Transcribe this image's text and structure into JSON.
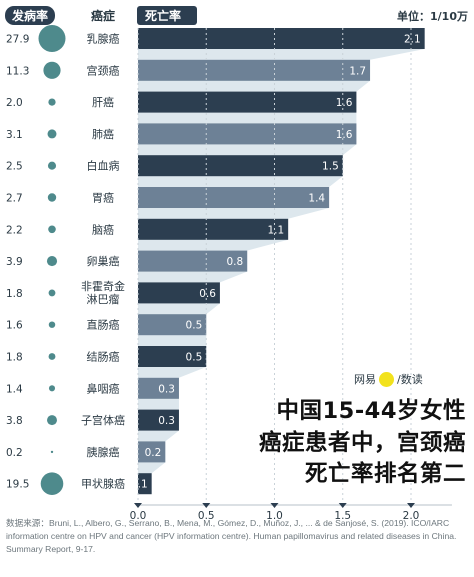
{
  "header": {
    "incidence_label": "发病率",
    "cancer_label": "癌症",
    "mortality_label": "死亡率",
    "unit_label": "单位：1/10万"
  },
  "chart_data": {
    "type": "bar",
    "orientation": "horizontal",
    "categories": [
      "乳腺癌",
      "宫颈癌",
      "肝癌",
      "肺癌",
      "白血病",
      "胃癌",
      "脑癌",
      "卵巢癌",
      "非霍奇金\n淋巴瘤",
      "直肠癌",
      "结肠癌",
      "鼻咽癌",
      "子宫体癌",
      "胰腺癌",
      "甲状腺癌"
    ],
    "values": [
      2.1,
      1.7,
      1.6,
      1.6,
      1.5,
      1.4,
      1.1,
      0.8,
      0.6,
      0.5,
      0.5,
      0.3,
      0.3,
      0.2,
      0.1
    ],
    "incidence": [
      27.9,
      11.3,
      2.0,
      3.1,
      2.5,
      2.7,
      2.2,
      3.9,
      1.8,
      1.6,
      1.8,
      1.4,
      3.8,
      0.2,
      19.5
    ],
    "value_labels": [
      "2.1",
      "1.7",
      "1.6",
      "1.6",
      "1.5",
      "1.4",
      "1.1",
      "0.8",
      "0.6",
      "0.5",
      "0.5",
      "0.3",
      "0.3",
      "0.2",
      "0.1"
    ],
    "incidence_labels": [
      "27.9",
      "11.3",
      "2.0",
      "3.1",
      "2.5",
      "2.7",
      "2.2",
      "3.9",
      "1.8",
      "1.6",
      "1.8",
      "1.4",
      "3.8",
      "0.2",
      "19.5"
    ],
    "xlim": [
      0,
      2.3
    ],
    "x_ticks": [
      0.0,
      0.5,
      1.0,
      1.5,
      2.0
    ],
    "x_tick_labels": [
      "0.0",
      "0.5",
      "1.0",
      "1.5",
      "2.0"
    ],
    "colors": {
      "dark": "#2c3e50",
      "light": "#6d8196",
      "circle": "#4e8a8c",
      "shade": "#dde7ed",
      "pill": "#2c3e50"
    }
  },
  "annotation": {
    "brand": "网易",
    "brand_2": "/数读",
    "headline": [
      "中国15-44岁女性",
      "癌症患者中，宫颈癌",
      "死亡率排名第二"
    ]
  },
  "source": "数据来源：Bruni, L., Albero, G., Serrano, B., Mena, M., Gómez, D., Muñoz, J., ... & de Sanjosé, S. (2019). ICO/IARC information centre on HPV and cancer (HPV information centre). Human papillomavirus and related diseases in China. Summary Report, 9-17."
}
